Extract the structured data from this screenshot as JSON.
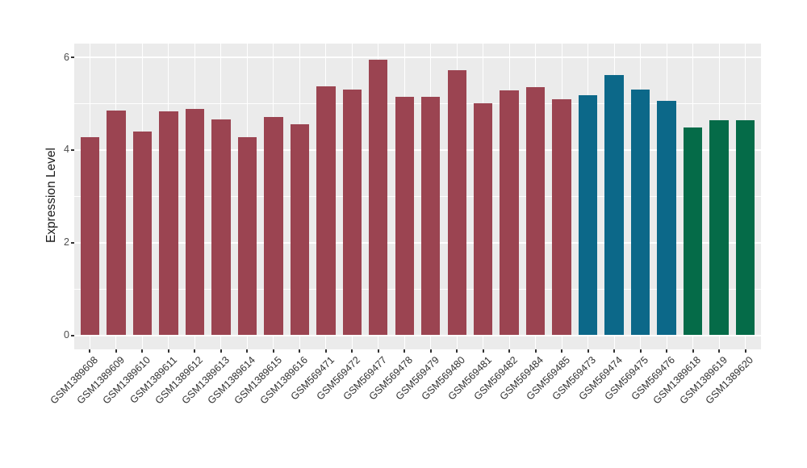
{
  "chart": {
    "y_axis_title": "Expression Level"
  },
  "colors": {
    "panel_background": "#EBEBEB",
    "gridline": "#FFFFFF",
    "group_maroon": "#9B4451",
    "group_teal": "#0C6889",
    "group_green": "#056B48",
    "axis_tick_text": "#4D4D4D",
    "axis_title_text": "#1A1A1A"
  },
  "chart_data": {
    "type": "bar",
    "title": "",
    "xlabel": "",
    "ylabel": "Expression Level",
    "ylim": [
      0,
      6.27
    ],
    "y_major_ticks": [
      0,
      2,
      4,
      6
    ],
    "y_minor_gridlines": [
      1,
      3,
      5
    ],
    "grid": "on",
    "legend_position": "none",
    "x_label_angle_degrees": 45,
    "categories": [
      "GSM1389608",
      "GSM1389609",
      "GSM1389610",
      "GSM1389611",
      "GSM1389612",
      "GSM1389613",
      "GSM1389614",
      "GSM1389615",
      "GSM1389616",
      "GSM569471",
      "GSM569472",
      "GSM569477",
      "GSM569478",
      "GSM569479",
      "GSM569480",
      "GSM569481",
      "GSM569482",
      "GSM569484",
      "GSM569485",
      "GSM569473",
      "GSM569474",
      "GSM569475",
      "GSM569476",
      "GSM1389618",
      "GSM1389619",
      "GSM1389620"
    ],
    "values": [
      4.28,
      4.86,
      4.4,
      4.84,
      4.89,
      4.66,
      4.27,
      4.71,
      4.56,
      5.38,
      5.31,
      5.95,
      5.15,
      5.15,
      5.72,
      5.01,
      5.29,
      5.36,
      5.09,
      5.18,
      5.62,
      5.31,
      5.06,
      4.49,
      4.64,
      4.64
    ],
    "bar_colors": [
      "#9B4451",
      "#9B4451",
      "#9B4451",
      "#9B4451",
      "#9B4451",
      "#9B4451",
      "#9B4451",
      "#9B4451",
      "#9B4451",
      "#9B4451",
      "#9B4451",
      "#9B4451",
      "#9B4451",
      "#9B4451",
      "#9B4451",
      "#9B4451",
      "#9B4451",
      "#9B4451",
      "#9B4451",
      "#0C6889",
      "#0C6889",
      "#0C6889",
      "#0C6889",
      "#056B48",
      "#056B48",
      "#056B48"
    ]
  }
}
